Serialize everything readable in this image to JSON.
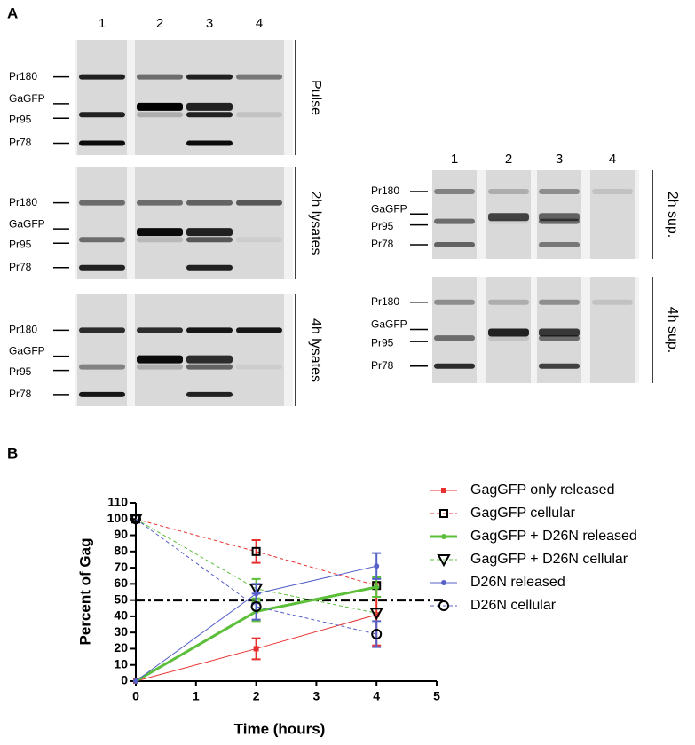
{
  "panel_a": {
    "label": "A",
    "left_lanes": [
      "1",
      "2",
      "3",
      "4"
    ],
    "right_lanes": [
      "1",
      "2",
      "3",
      "4"
    ],
    "left_blots": [
      {
        "label": "Pulse",
        "markers": [
          "Pr180",
          "GaGFP",
          "Pr95",
          "Pr78"
        ]
      },
      {
        "label": "2h lysates",
        "markers": [
          "Pr180",
          "GaGFP",
          "Pr95",
          "Pr78"
        ]
      },
      {
        "label": "4h lysates",
        "markers": [
          "Pr180",
          "GaGFP",
          "Pr95",
          "Pr78"
        ]
      }
    ],
    "right_blots": [
      {
        "label": "2h sup.",
        "markers": [
          "Pr180",
          "GaGFP",
          "Pr95",
          "Pr78"
        ]
      },
      {
        "label": "4h sup.",
        "markers": [
          "Pr180",
          "GaGFP",
          "Pr95",
          "Pr78"
        ]
      }
    ]
  },
  "chart_data": {
    "type": "line",
    "panel_label": "B",
    "x_label": "Time (hours)",
    "y_label": "Percent of Gag",
    "x": [
      0,
      2,
      4
    ],
    "xlim": [
      0,
      5
    ],
    "xticks": [
      0,
      1,
      2,
      3,
      4,
      5
    ],
    "ylim": [
      0,
      110
    ],
    "yticks": [
      0,
      10,
      20,
      30,
      40,
      50,
      60,
      70,
      80,
      90,
      100,
      110
    ],
    "reference_line": 50,
    "legend": "outside right",
    "series": [
      {
        "name": "GagGFP only released",
        "color": "#e8312f",
        "linestyle": "solid",
        "linewidth": 1,
        "marker": "square",
        "values": [
          0,
          20,
          41
        ],
        "errors": [
          null,
          6.5,
          19
        ]
      },
      {
        "name": "GagGFP cellular",
        "color": "#e8312f",
        "linestyle": "dashed",
        "linewidth": 1,
        "marker": "open-square",
        "values": [
          100,
          80,
          59
        ],
        "errors": [
          null,
          7,
          null
        ]
      },
      {
        "name": "GagGFP + D26N released",
        "color": "#5cbf3a",
        "linestyle": "solid",
        "linewidth": 3,
        "marker": "dot",
        "values": [
          0,
          43,
          58
        ],
        "errors": [
          null,
          6,
          6
        ]
      },
      {
        "name": "GagGFP + D26N cellular",
        "color": "#5cbf3a",
        "linestyle": "dashed",
        "linewidth": 1,
        "marker": "open-triangle",
        "values": [
          100,
          57,
          42
        ],
        "errors": [
          null,
          6,
          null
        ]
      },
      {
        "name": "D26N released",
        "color": "#5560c8",
        "linestyle": "solid",
        "linewidth": 1,
        "marker": "dot",
        "values": [
          0,
          54,
          71
        ],
        "errors": [
          null,
          6,
          8
        ]
      },
      {
        "name": "D26N cellular",
        "color": "#5560c8",
        "linestyle": "dashed",
        "linewidth": 1,
        "marker": "open-circle",
        "values": [
          100,
          46,
          29
        ],
        "errors": [
          null,
          8,
          8
        ]
      }
    ]
  }
}
